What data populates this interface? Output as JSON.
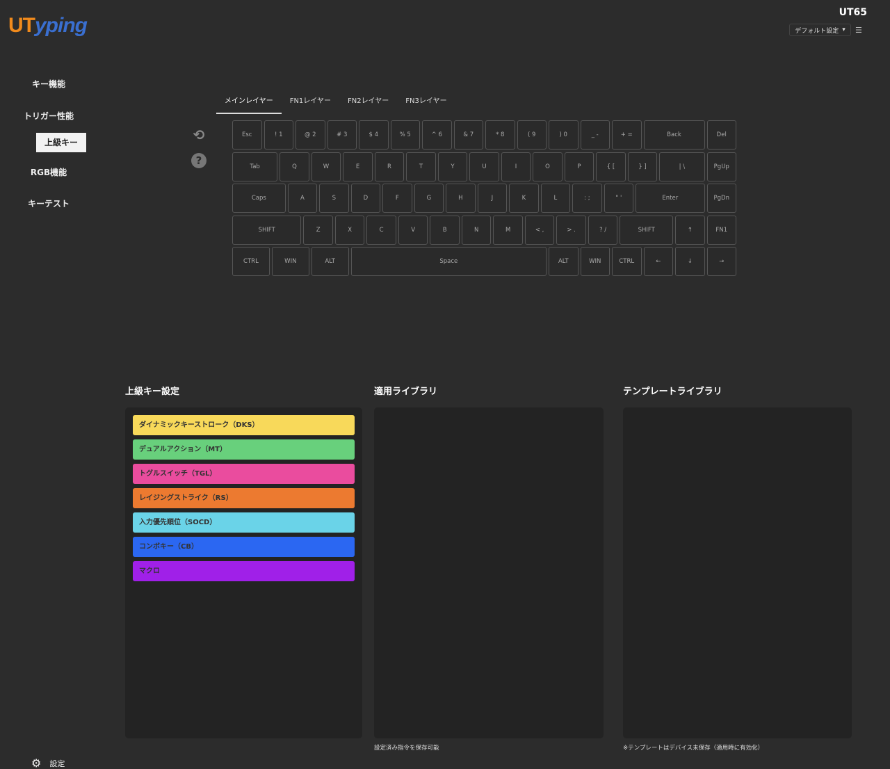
{
  "logo": {
    "part1": "UT",
    "part2": "yping"
  },
  "header": {
    "device": "UT65",
    "profile": "デフォルト設定",
    "profile_icon": "caret-down-icon",
    "menu_icon": "list-icon"
  },
  "sidebar": {
    "items": [
      {
        "label": "キー機能"
      },
      {
        "label": "トリガー性能"
      },
      {
        "label": "上級キー",
        "active": true
      },
      {
        "label": "RGB機能"
      },
      {
        "label": "キーテスト"
      }
    ],
    "settings": "設定"
  },
  "tabs": [
    {
      "label": "メインレイヤー",
      "active": true
    },
    {
      "label": "FN1レイヤー"
    },
    {
      "label": "FN2レイヤー"
    },
    {
      "label": "FN3レイヤー"
    }
  ],
  "tools": {
    "reset_icon": "reset-icon",
    "help_icon": "help-icon"
  },
  "keyboard": [
    [
      [
        "Esc",
        1
      ],
      [
        "! 1",
        1
      ],
      [
        "@ 2",
        1
      ],
      [
        "# 3",
        1
      ],
      [
        "$ 4",
        1
      ],
      [
        "% 5",
        1
      ],
      [
        "^ 6",
        1
      ],
      [
        "& 7",
        1
      ],
      [
        "* 8",
        1
      ],
      [
        "( 9",
        1
      ],
      [
        ") 0",
        1
      ],
      [
        "_ -",
        1
      ],
      [
        "+ =",
        1
      ],
      [
        "Back",
        2
      ],
      [
        "Del",
        1
      ]
    ],
    [
      [
        "Tab",
        1.5
      ],
      [
        "Q",
        1
      ],
      [
        "W",
        1
      ],
      [
        "E",
        1
      ],
      [
        "R",
        1
      ],
      [
        "T",
        1
      ],
      [
        "Y",
        1
      ],
      [
        "U",
        1
      ],
      [
        "I",
        1
      ],
      [
        "O",
        1
      ],
      [
        "P",
        1
      ],
      [
        "{ [",
        1
      ],
      [
        "} ]",
        1
      ],
      [
        "| \\",
        1.5
      ],
      [
        "PgUp",
        1
      ]
    ],
    [
      [
        "Caps",
        1.75
      ],
      [
        "A",
        1
      ],
      [
        "S",
        1
      ],
      [
        "D",
        1
      ],
      [
        "F",
        1
      ],
      [
        "G",
        1
      ],
      [
        "H",
        1
      ],
      [
        "J",
        1
      ],
      [
        "K",
        1
      ],
      [
        "L",
        1
      ],
      [
        ": ;",
        1
      ],
      [
        "\" '",
        1
      ],
      [
        "Enter",
        2.25
      ],
      [
        "PgDn",
        1
      ]
    ],
    [
      [
        "SHIFT",
        2.25
      ],
      [
        "Z",
        1
      ],
      [
        "X",
        1
      ],
      [
        "C",
        1
      ],
      [
        "V",
        1
      ],
      [
        "B",
        1
      ],
      [
        "N",
        1
      ],
      [
        "M",
        1
      ],
      [
        "< ,",
        1
      ],
      [
        "> .",
        1
      ],
      [
        "? /",
        1
      ],
      [
        "SHIFT",
        1.75
      ],
      [
        "↑",
        1
      ],
      [
        "FN1",
        1
      ]
    ],
    [
      [
        "CTRL",
        1.25
      ],
      [
        "WIN",
        1.25
      ],
      [
        "ALT",
        1.25
      ],
      [
        "Space",
        6.25
      ],
      [
        "ALT",
        1
      ],
      [
        "WIN",
        1
      ],
      [
        "CTRL",
        1
      ],
      [
        "←",
        1
      ],
      [
        "↓",
        1
      ],
      [
        "→",
        1
      ]
    ]
  ],
  "sections": {
    "advanced": {
      "title": "上級キー設定",
      "items": [
        {
          "label": "ダイナミックキーストローク（DKS）",
          "color": "#f8d95a"
        },
        {
          "label": "デュアルアクション（MT）",
          "color": "#68d07c"
        },
        {
          "label": "トグルスイッチ（TGL）",
          "color": "#ea4c9e"
        },
        {
          "label": "レイジングストライク（RS）",
          "color": "#ec7a30"
        },
        {
          "label": "入力優先順位（SOCD）",
          "color": "#6ad3e8"
        },
        {
          "label": "コンボキー（CB）",
          "color": "#2b67f2"
        },
        {
          "label": "マクロ",
          "color": "#a020e8"
        }
      ]
    },
    "applied": {
      "title": "適用ライブラリ",
      "note": "設定済み指令を保存可能"
    },
    "template": {
      "title": "テンプレートライブラリ",
      "note": "※テンプレートはデバイス未保存（適用時に有効化）"
    }
  }
}
